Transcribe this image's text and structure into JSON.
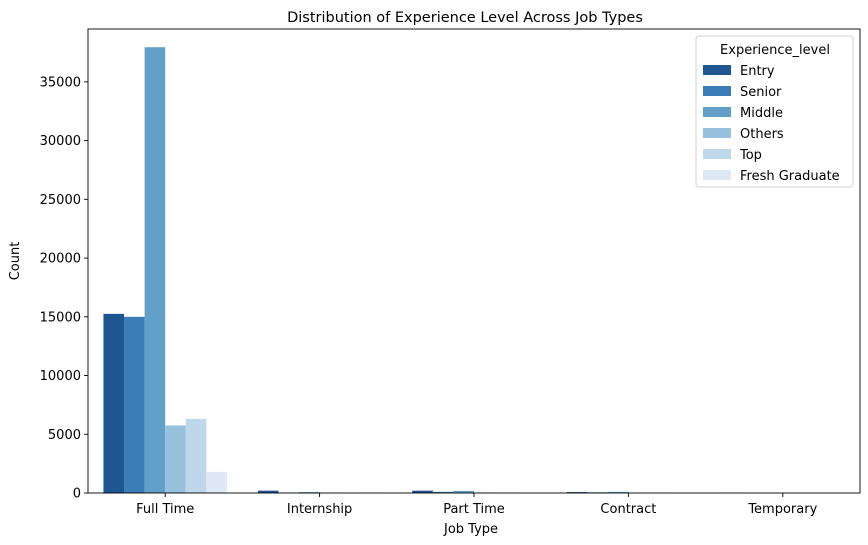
{
  "chart_data": {
    "type": "bar",
    "title": "Distribution of Experience Level Across Job Types",
    "xlabel": "Job Type",
    "ylabel": "Count",
    "categories": [
      "Full Time",
      "Internship",
      "Part Time",
      "Contract",
      "Temporary"
    ],
    "ylim": [
      0,
      39500
    ],
    "yticks": [
      0,
      5000,
      10000,
      15000,
      20000,
      25000,
      30000,
      35000
    ],
    "grid": false,
    "legend": {
      "title": "Experience_level",
      "placement": "top-right"
    },
    "series": [
      {
        "name": "Entry",
        "color": "#1f5591",
        "values": [
          15250,
          200,
          200,
          80,
          10
        ]
      },
      {
        "name": "Senior",
        "color": "#3b7db8",
        "values": [
          15000,
          30,
          100,
          60,
          5
        ]
      },
      {
        "name": "Middle",
        "color": "#62a0ca",
        "values": [
          37950,
          80,
          180,
          100,
          5
        ]
      },
      {
        "name": "Others",
        "color": "#97c1dd",
        "values": [
          5750,
          30,
          50,
          30,
          5
        ]
      },
      {
        "name": "Top",
        "color": "#bfd7ea",
        "values": [
          6300,
          10,
          20,
          20,
          0
        ]
      },
      {
        "name": "Fresh Graduate",
        "color": "#dfe9f5",
        "values": [
          1800,
          40,
          10,
          10,
          0
        ]
      }
    ]
  }
}
